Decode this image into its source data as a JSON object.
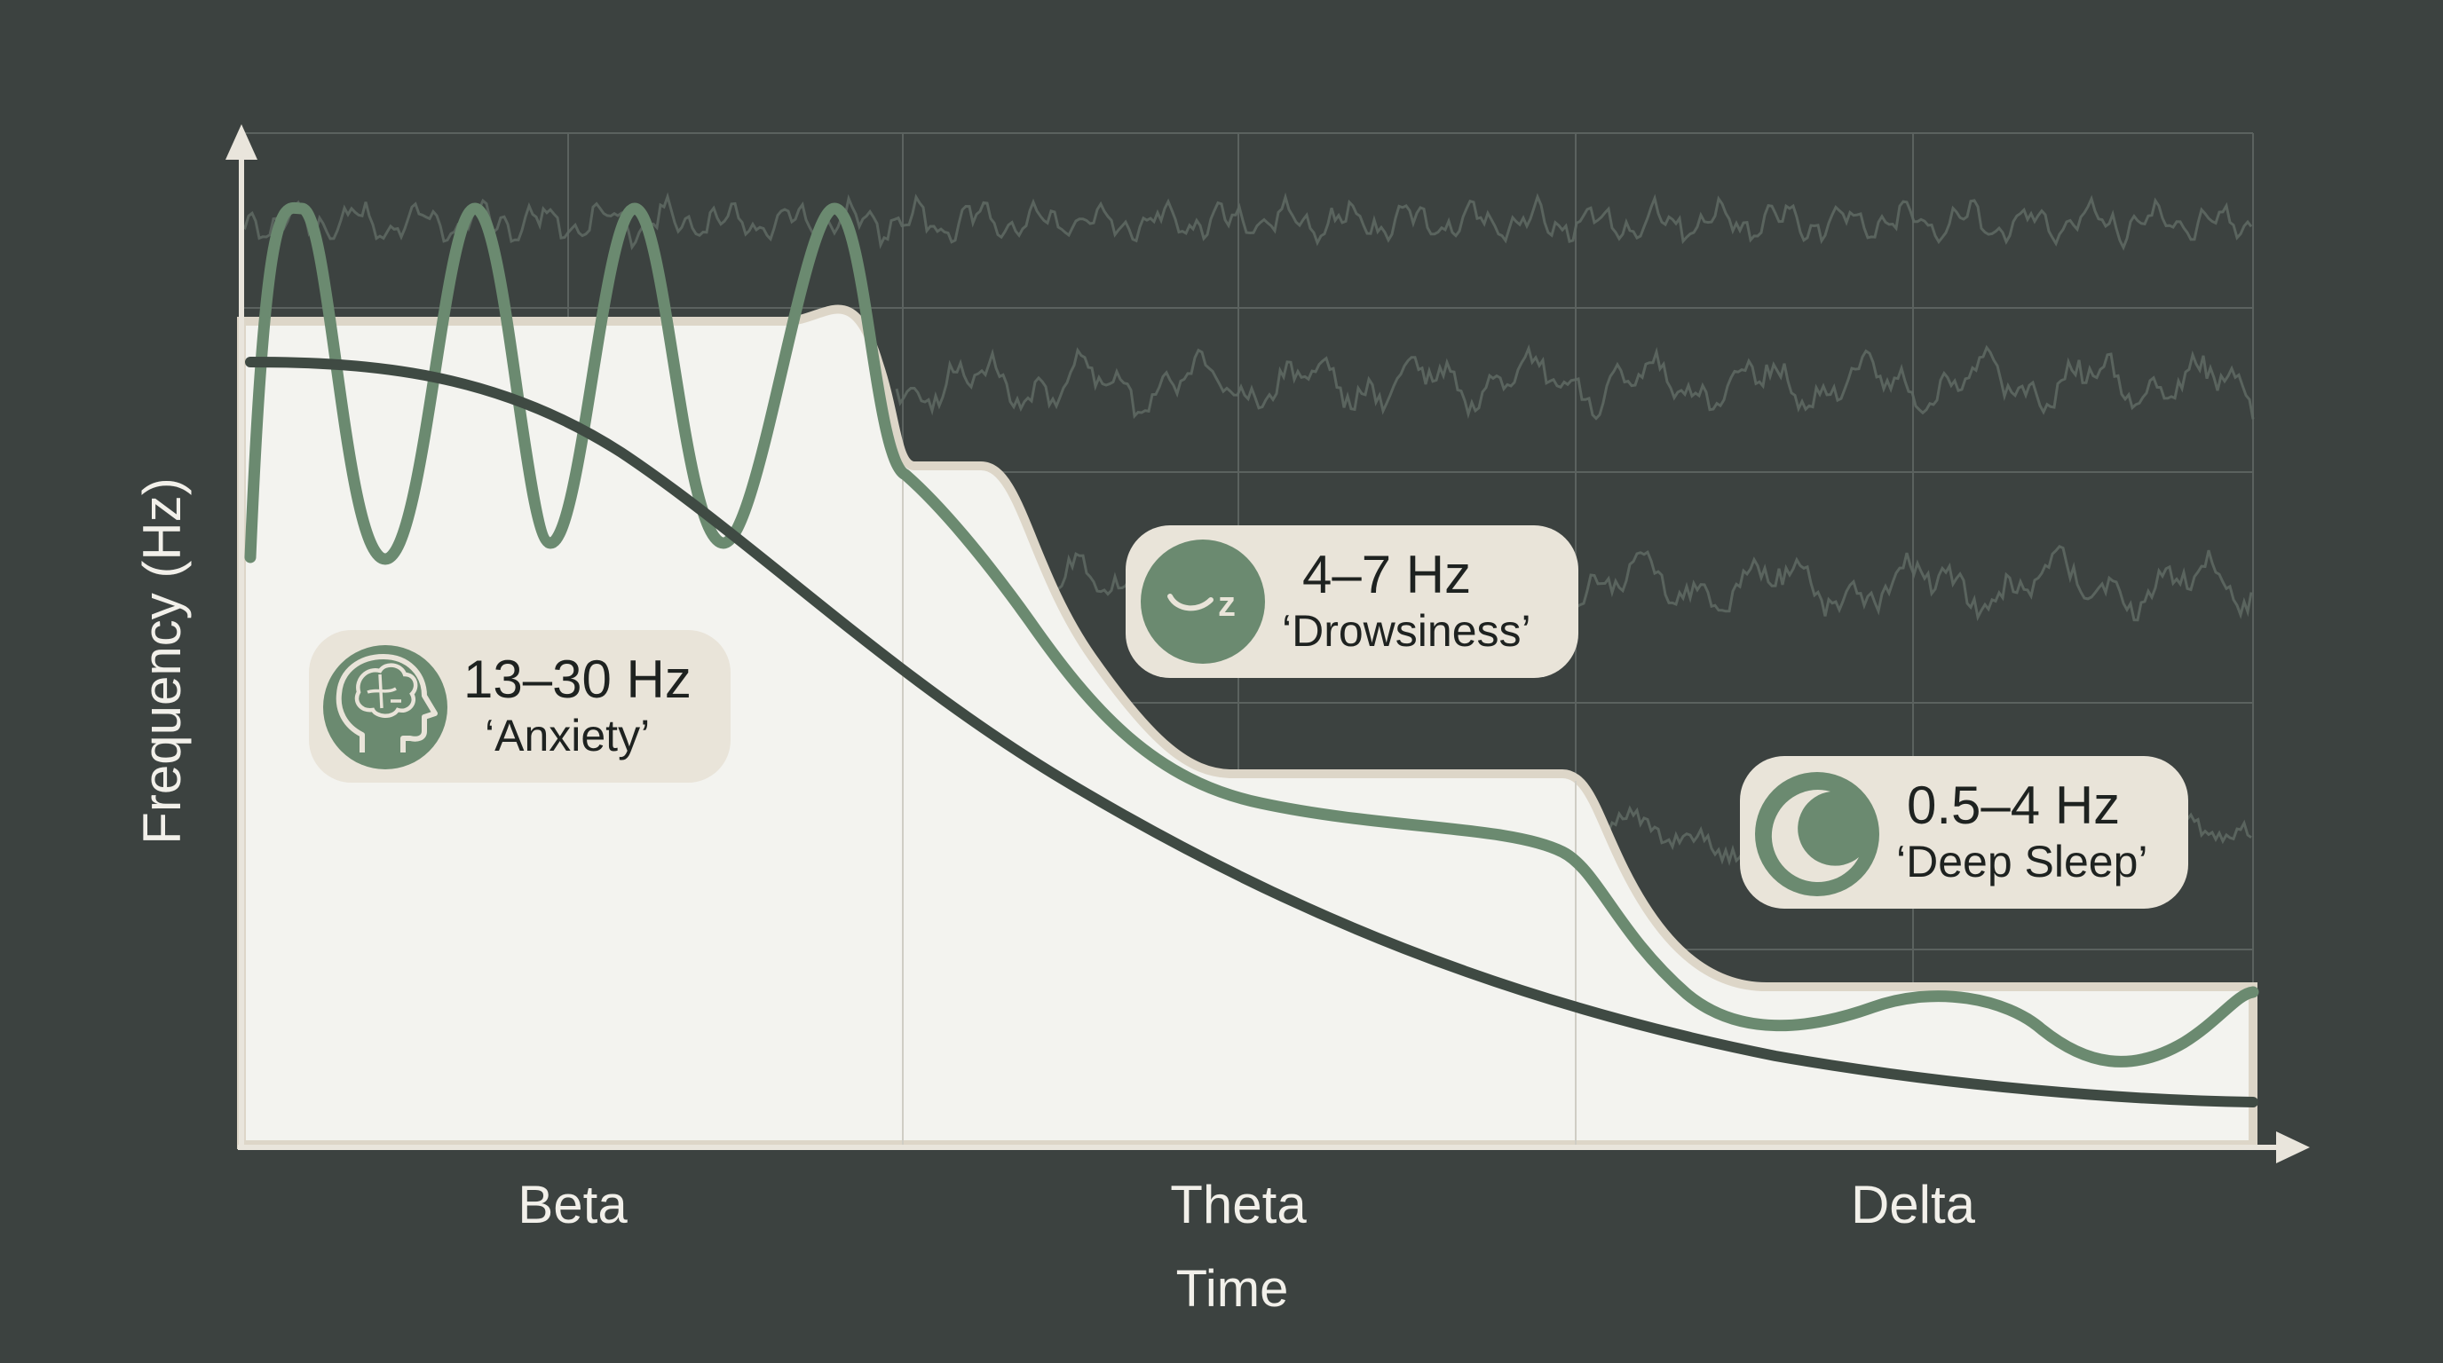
{
  "chart_data": {
    "type": "line",
    "title": "",
    "xlabel": "Time",
    "ylabel": "Frequency (Hz)",
    "categories": [
      "Beta",
      "Theta",
      "Delta"
    ],
    "bands": [
      {
        "name": "Beta",
        "range": "13–30 Hz",
        "state": "‘Anxiety’",
        "icon": "brain-head-icon"
      },
      {
        "name": "Theta",
        "range": "4–7 Hz",
        "state": "‘Drowsiness’",
        "icon": "sleepy-face-icon"
      },
      {
        "name": "Delta",
        "range": "0.5–4 Hz",
        "state": "‘Deep Sleep’",
        "icon": "crescent-moon-icon"
      }
    ],
    "grid": true,
    "legend": "none"
  },
  "colors": {
    "background": "#3c4240",
    "grid": "#5b625f",
    "area_fill": "#f3f3ef",
    "area_edge": "#ddd6c8",
    "wave": "#6b8a70",
    "decline_curve": "#3f4a43",
    "badge_bg": "#e9e4d9",
    "icon_circle": "#6b8a70",
    "axis": "#e9e5dc",
    "text_light": "#f2f0ea",
    "text_dark": "#1e2220"
  }
}
